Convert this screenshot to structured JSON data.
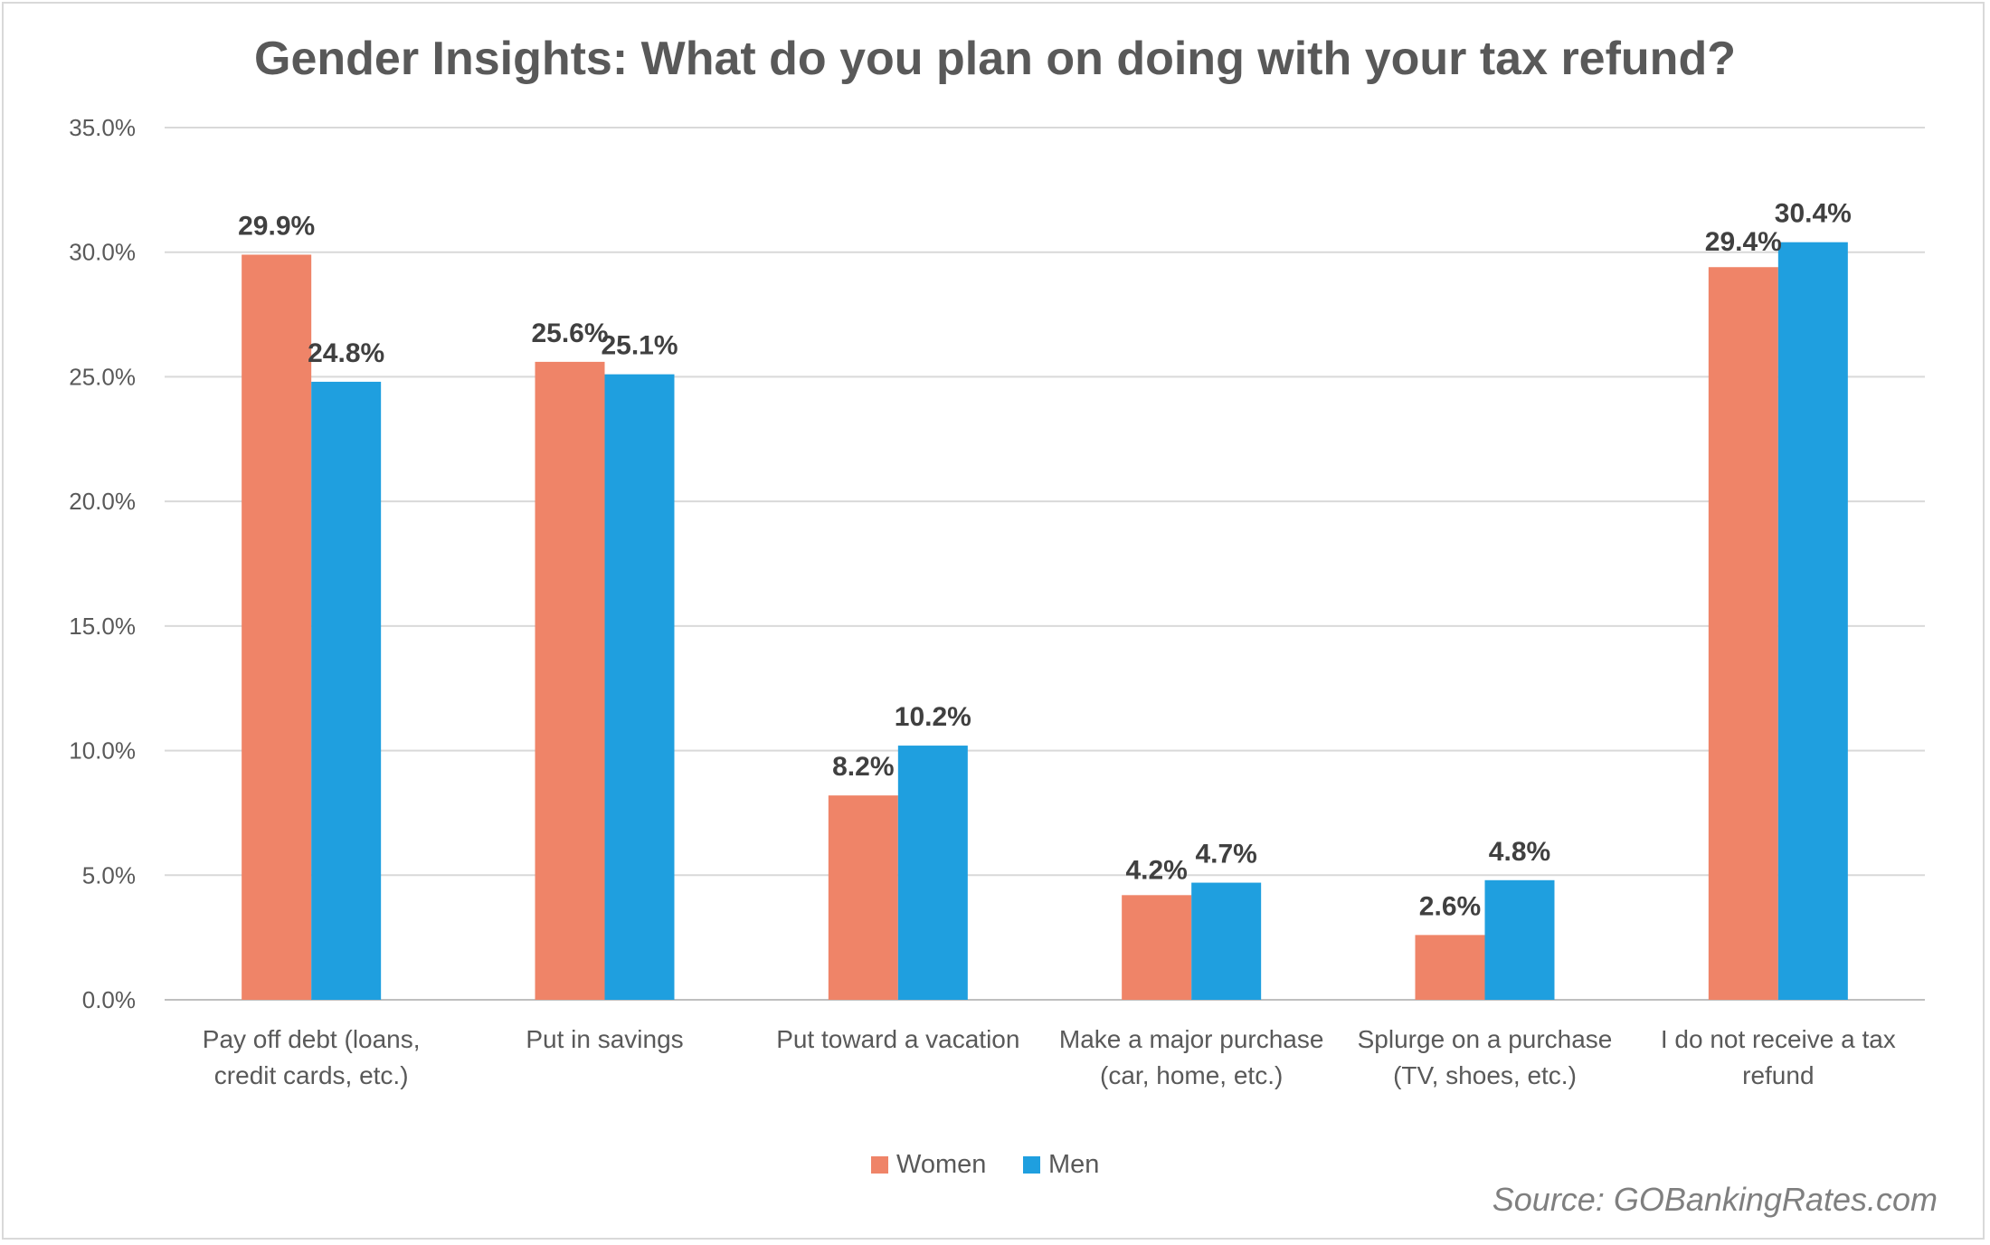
{
  "chart_data": {
    "type": "bar",
    "title": "Gender Insights: What do you plan on doing with your tax refund?",
    "xlabel": "",
    "ylabel": "",
    "ylim": [
      0,
      35
    ],
    "yticks": [
      "0.0%",
      "5.0%",
      "10.0%",
      "15.0%",
      "20.0%",
      "25.0%",
      "30.0%",
      "35.0%"
    ],
    "categories": [
      [
        "Pay off debt (loans,",
        "credit cards, etc.)"
      ],
      [
        "Put in savings"
      ],
      [
        "Put toward a vacation"
      ],
      [
        "Make a major purchase",
        "(car, home, etc.)"
      ],
      [
        "Splurge on a purchase",
        "(TV, shoes, etc.)"
      ],
      [
        "I do not receive a tax",
        "refund"
      ]
    ],
    "series": [
      {
        "name": "Women",
        "color": "#ef8468",
        "values": [
          29.9,
          25.6,
          8.2,
          4.2,
          2.6,
          29.4
        ],
        "labels": [
          "29.9%",
          "25.6%",
          "8.2%",
          "4.2%",
          "2.6%",
          "29.4%"
        ]
      },
      {
        "name": "Men",
        "color": "#1f9fdf",
        "values": [
          24.8,
          25.1,
          10.2,
          4.7,
          4.8,
          30.4
        ],
        "labels": [
          "24.8%",
          "25.1%",
          "10.2%",
          "4.7%",
          "4.8%",
          "30.4%"
        ]
      }
    ],
    "grid": true,
    "legend_position": "bottom-center"
  },
  "source": "Source: GOBankingRates.com"
}
